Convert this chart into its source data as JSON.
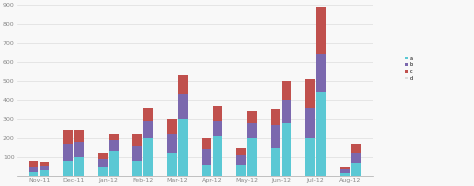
{
  "months": [
    "Nov-11",
    "Dec-11",
    "Jan-12",
    "Feb-12",
    "Mar-12",
    "Apr-12",
    "May-12",
    "Jun-12",
    "Jul-12",
    "Aug-12"
  ],
  "bar1": {
    "c1": [
      20,
      80,
      50,
      80,
      120,
      60,
      60,
      150,
      200,
      15
    ],
    "c2": [
      30,
      90,
      40,
      80,
      100,
      80,
      50,
      120,
      160,
      20
    ],
    "c3": [
      30,
      70,
      30,
      60,
      80,
      60,
      40,
      80,
      150,
      15
    ]
  },
  "bar2": {
    "c1": [
      30,
      100,
      130,
      200,
      300,
      210,
      200,
      280,
      440,
      70
    ],
    "c2": [
      25,
      80,
      60,
      90,
      130,
      80,
      80,
      120,
      200,
      50
    ],
    "c3": [
      20,
      60,
      30,
      70,
      100,
      80,
      60,
      100,
      250,
      50
    ]
  },
  "colors": [
    "#5BC8D4",
    "#7B68AE",
    "#C0504D",
    "#F79646"
  ],
  "legend_labels": [
    "a",
    "b",
    "c",
    "d"
  ],
  "ylim": [
    0,
    900
  ],
  "yticks": [
    100,
    200,
    300,
    400,
    500,
    600,
    700,
    800,
    900
  ],
  "background_color": "#F8F8F8",
  "grid_color": "#DDDDDD"
}
